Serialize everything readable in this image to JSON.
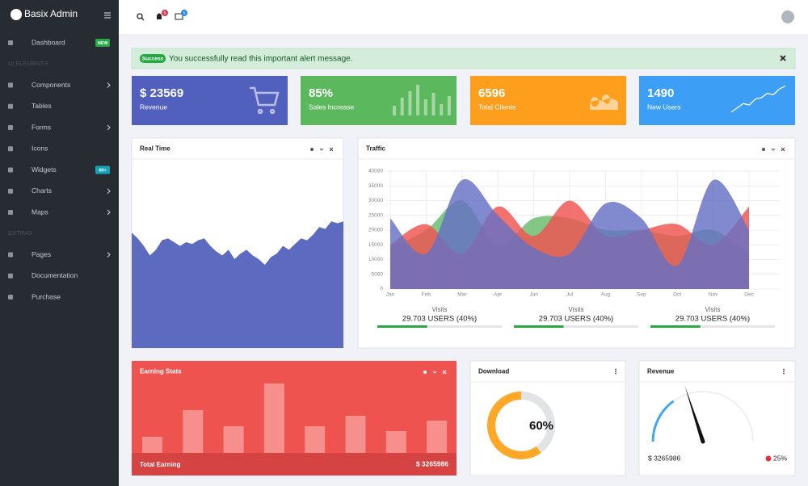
{
  "sidebar": {
    "brand": "Basix Admin",
    "items": [
      {
        "label": "Dashboard",
        "badge": "NEW",
        "badge_color": "#28a745"
      },
      {
        "heading": "UI ELEMENTS"
      },
      {
        "label": "Components",
        "arrow": true
      },
      {
        "label": "Tables"
      },
      {
        "label": "Forms",
        "arrow": true
      },
      {
        "label": "Icons"
      },
      {
        "label": "Widgets",
        "badge": "60+",
        "badge_color": "#17a2b8"
      },
      {
        "label": "Charts",
        "arrow": true
      },
      {
        "label": "Maps",
        "arrow": true
      },
      {
        "heading": "EXTRAS"
      },
      {
        "label": "Pages",
        "arrow": true
      },
      {
        "label": "Documentation"
      },
      {
        "label": "Purchase"
      }
    ]
  },
  "topbar": {
    "notifications": 5,
    "messages": 5
  },
  "alert": {
    "badge": "Success",
    "text": "You successfully read this important alert message."
  },
  "stats": [
    {
      "value": "$ 23569",
      "label": "Revenue",
      "color": "#5260bd"
    },
    {
      "value": "85%",
      "label": "Sales Increase",
      "color": "#5cb85c",
      "bars": [
        12,
        22,
        30,
        38,
        20,
        28,
        14,
        24
      ],
      "ylim": [
        0,
        40
      ]
    },
    {
      "value": "6596",
      "label": "Total Clients",
      "color": "#fd9e1c"
    },
    {
      "value": "1490",
      "label": "New Users",
      "color": "#3c9ff5",
      "line": [
        0,
        6,
        12,
        10,
        18,
        20,
        26,
        24,
        32,
        36
      ],
      "ylim": [
        0,
        40
      ]
    }
  ],
  "realtime": {
    "title": "Real Time",
    "type": "area",
    "color": "#5c6bc0",
    "ylim": [
      0,
      100
    ],
    "values": [
      61,
      58,
      54,
      49,
      52,
      57,
      58,
      56,
      54,
      56,
      55,
      57,
      58,
      54,
      51,
      49,
      52,
      47,
      50,
      52,
      49,
      47,
      44,
      48,
      50,
      54,
      52,
      55,
      58,
      57,
      60,
      64,
      63,
      67,
      66,
      67
    ]
  },
  "traffic": {
    "title": "Traffic",
    "type": "area",
    "categories": [
      "Jan",
      "Feb",
      "Mar",
      "Apr",
      "Jun",
      "Jul",
      "Aug",
      "Sep",
      "Oct",
      "Nov",
      "Dec"
    ],
    "ylim": [
      0,
      40000
    ],
    "yticks": [
      0,
      5000,
      10000,
      15000,
      20000,
      25000,
      30000,
      35000,
      40000
    ],
    "grid": true,
    "series": [
      {
        "color": "#66bb6a",
        "values": [
          14000,
          20000,
          30000,
          15000,
          24000,
          24000,
          20000,
          20000,
          18000,
          20000,
          12000
        ]
      },
      {
        "color": "#ef5350",
        "values": [
          15000,
          22000,
          12000,
          28000,
          18000,
          30000,
          18000,
          20000,
          22000,
          15000,
          28000
        ]
      },
      {
        "color": "#6670c4",
        "values": [
          24000,
          12000,
          37000,
          25000,
          14000,
          12000,
          29000,
          24000,
          8000,
          37000,
          20000
        ]
      }
    ],
    "legend": [
      {
        "label": "Visits",
        "value": "29.703 USERS (40%)",
        "progress": 40
      },
      {
        "label": "Visits",
        "value": "29.703 USERS (40%)",
        "progress": 40
      },
      {
        "label": "Visits",
        "value": "29.703 USERS (40%)",
        "progress": 40
      }
    ]
  },
  "earning": {
    "title": "Earning Stats",
    "type": "bar",
    "ylim": [
      0,
      100
    ],
    "values": [
      20,
      53,
      33,
      86,
      33,
      46,
      27,
      40
    ],
    "footer_label": "Total Earning",
    "footer_value": "$ 3265986"
  },
  "download": {
    "title": "Download",
    "value": 60,
    "label": "60%"
  },
  "revenue": {
    "title": "Revenue",
    "arc": 30,
    "needle": 40,
    "range": [
      0,
      100
    ],
    "amount": "$ 3265986",
    "change": "25%"
  }
}
